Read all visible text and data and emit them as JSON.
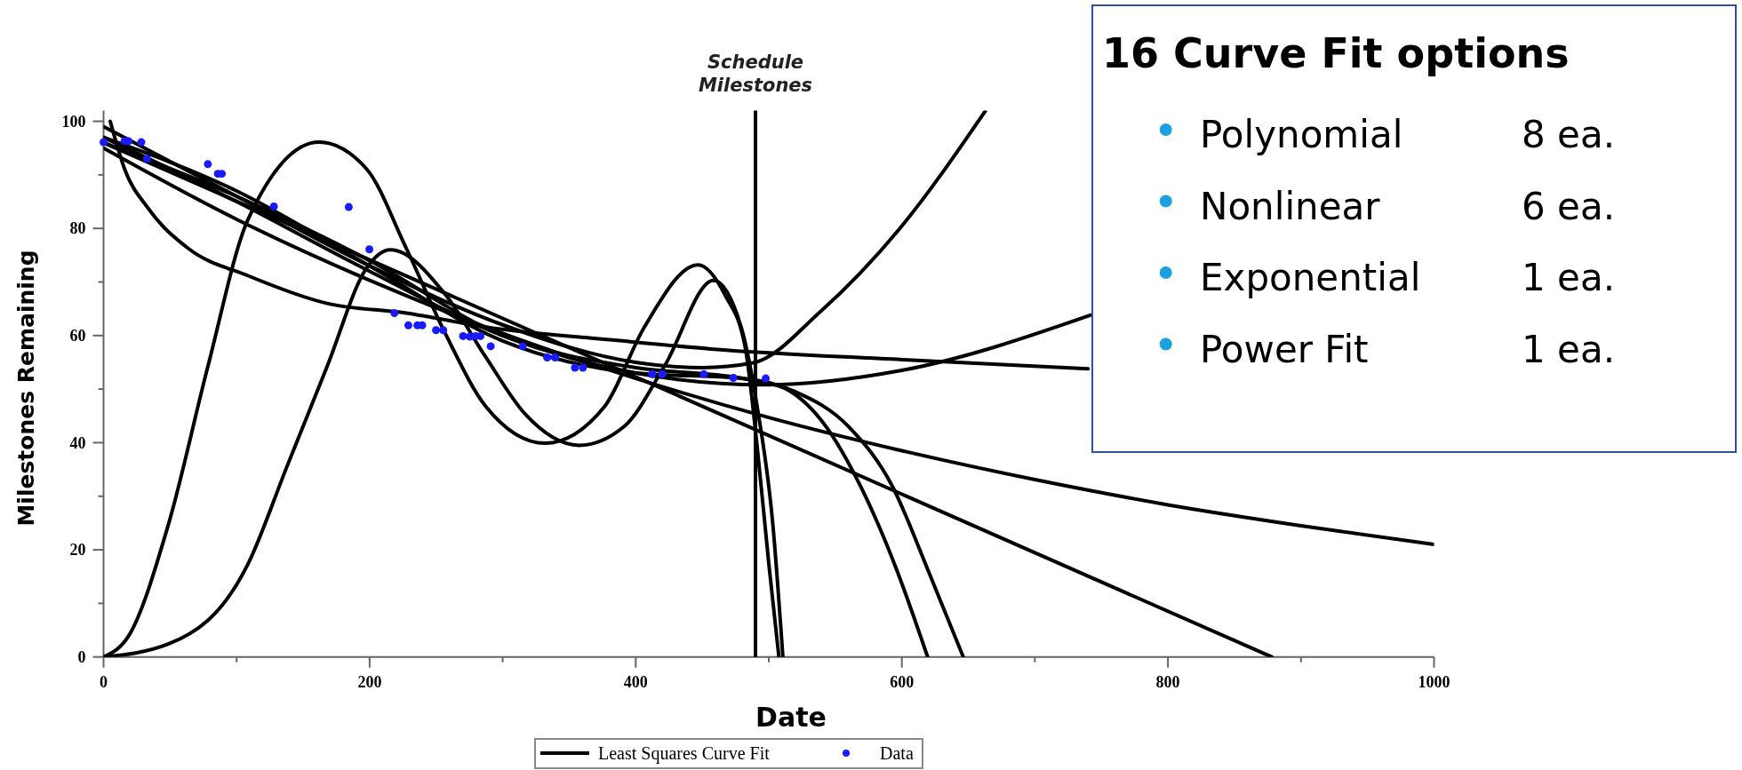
{
  "chart_data": {
    "type": "line",
    "xlabel": "Date",
    "ylabel": "Milestones Remaining",
    "xlim": [
      0,
      1000
    ],
    "ylim": [
      0,
      102
    ],
    "xticks": [
      0,
      {
        "value": 100,
        "label": null
      },
      200,
      {
        "value": 300,
        "label": null
      },
      400,
      {
        "value": 500,
        "label": null
      },
      600,
      {
        "value": 700,
        "label": null
      },
      800,
      {
        "value": 900,
        "label": null
      },
      1000
    ],
    "yticks": [
      0,
      {
        "value": 10,
        "label": null
      },
      20,
      {
        "value": 30,
        "label": null
      },
      40,
      {
        "value": 50,
        "label": null
      },
      60,
      {
        "value": 70,
        "label": null
      },
      80,
      {
        "value": 90,
        "label": null
      },
      100
    ],
    "legend": "bottom",
    "ref_lines": [
      {
        "axis": "x",
        "value": 490,
        "label": "Schedule Milestones",
        "color": "#000000"
      }
    ],
    "annotations": [
      "16 Curve Fit options",
      "Polynomial 8 ea.",
      "Nonlinear 6 ea.",
      "Exponential 1 ea.",
      "Power Fit 1 ea."
    ],
    "series": [
      {
        "name": "Least Squares Curve Fit",
        "color": "#000000",
        "x": [
          0,
          100,
          200,
          300,
          400,
          500,
          600,
          700,
          800,
          900,
          1000
        ],
        "values": [
          95,
          81.7,
          70.3,
          60.4,
          52,
          44.7,
          38.5,
          33.1,
          28.4,
          24.5,
          21
        ]
      },
      {
        "type": "line",
        "color": "#000000",
        "x": [
          0,
          878
        ],
        "values": [
          96,
          0
        ]
      },
      {
        "type": "line",
        "color": "#000000",
        "x": [
          5,
          15.8,
          33.7,
          63.5,
          108.3,
          168,
          227.5,
          287.2,
          389.8,
          456.6,
          600,
          740
        ],
        "values": [
          100,
          91.1,
          83.7,
          76.3,
          71.2,
          66,
          64.2,
          61.6,
          59,
          57.5,
          55.5,
          53.8
        ]
      },
      {
        "type": "line",
        "color": "#000000",
        "x": [
          0,
          18.8,
          48.6,
          78.4,
          108.3,
          161.9,
          197.7,
          227.5,
          257.4,
          287.2,
          331.9,
          376.7,
          406.5,
          446.8,
          467.3,
          482.2,
          491.2,
          500.1,
          507.6
        ],
        "values": [
          0,
          3.9,
          24.6,
          54.2,
          81.5,
          96.1,
          91.1,
          76.3,
          60.1,
          46.8,
          39.9,
          46.8,
          61.6,
          73.2,
          67.5,
          57.9,
          39.4,
          17.2,
          0
        ]
      },
      {
        "type": "line",
        "color": "#000000",
        "x": [
          0,
          48.6,
          108.3,
          138.1,
          168,
          197.7,
          215.6,
          257.4,
          287.2,
          317,
          357.3,
          391.6,
          421.4,
          458.4,
          479.2,
          491.2,
          503.1,
          510.6
        ],
        "values": [
          0,
          2.4,
          17.2,
          35.7,
          54.2,
          72.6,
          76,
          67.5,
          56,
          45.3,
          39.5,
          43.1,
          54.2,
          70.3,
          61.6,
          46.8,
          24.6,
          0
        ]
      },
      {
        "type": "line",
        "color": "#000000",
        "x": [
          0,
          100,
          200,
          300,
          400,
          450,
          488.2,
          538.9,
          598.5,
          662.7
        ],
        "values": [
          99,
          86,
          73,
          62,
          55,
          54,
          54.9,
          64.5,
          80,
          101.9
        ]
      },
      {
        "type": "line",
        "color": "#000000",
        "x": [
          0,
          100,
          200,
          300,
          400,
          497.1,
          600,
          741.7
        ],
        "values": [
          97,
          85,
          72,
          60,
          53,
          50.8,
          53.5,
          63.8
        ]
      },
      {
        "type": "line",
        "color": "#000000",
        "x": [
          0,
          100,
          200,
          300,
          400,
          480,
          509,
          540,
          568.7,
          595,
          619.4
        ],
        "values": [
          97,
          87,
          73,
          59,
          53,
          52,
          50.5,
          44,
          32,
          17,
          0
        ]
      },
      {
        "type": "line",
        "color": "#000000",
        "x": [
          0,
          100,
          200,
          300,
          400,
          480,
          520,
          560,
          592.6,
          620,
          646.2
        ],
        "values": [
          96,
          86,
          74,
          60,
          54,
          52,
          49.5,
          43,
          32,
          16,
          0
        ]
      },
      {
        "name": "Data",
        "type": "scatter",
        "color": "#1a1aff",
        "marker": "circle",
        "x": [
          0,
          15.8,
          18.8,
          28.4,
          32.7,
          78.4,
          85.9,
          88.9,
          128,
          184.3,
          199.8,
          218.6,
          229.1,
          235.9,
          239.5,
          249.9,
          255.3,
          270.2,
          275.3,
          279.7,
          283.3,
          291,
          315,
          333.4,
          339.4,
          354.3,
          360.3,
          412.4,
          419.9,
          451.2,
          473.3,
          497.7
        ],
        "values": [
          96.1,
          96.3,
          96.3,
          96.1,
          93,
          92,
          90.2,
          90.2,
          84.1,
          84,
          76.1,
          64.2,
          61.9,
          61.9,
          61.9,
          61,
          61,
          59.9,
          59.8,
          59.9,
          59.9,
          58,
          58,
          55.9,
          55.9,
          54,
          54,
          52.8,
          52.8,
          52.8,
          52.1,
          52
        ]
      }
    ]
  }
}
